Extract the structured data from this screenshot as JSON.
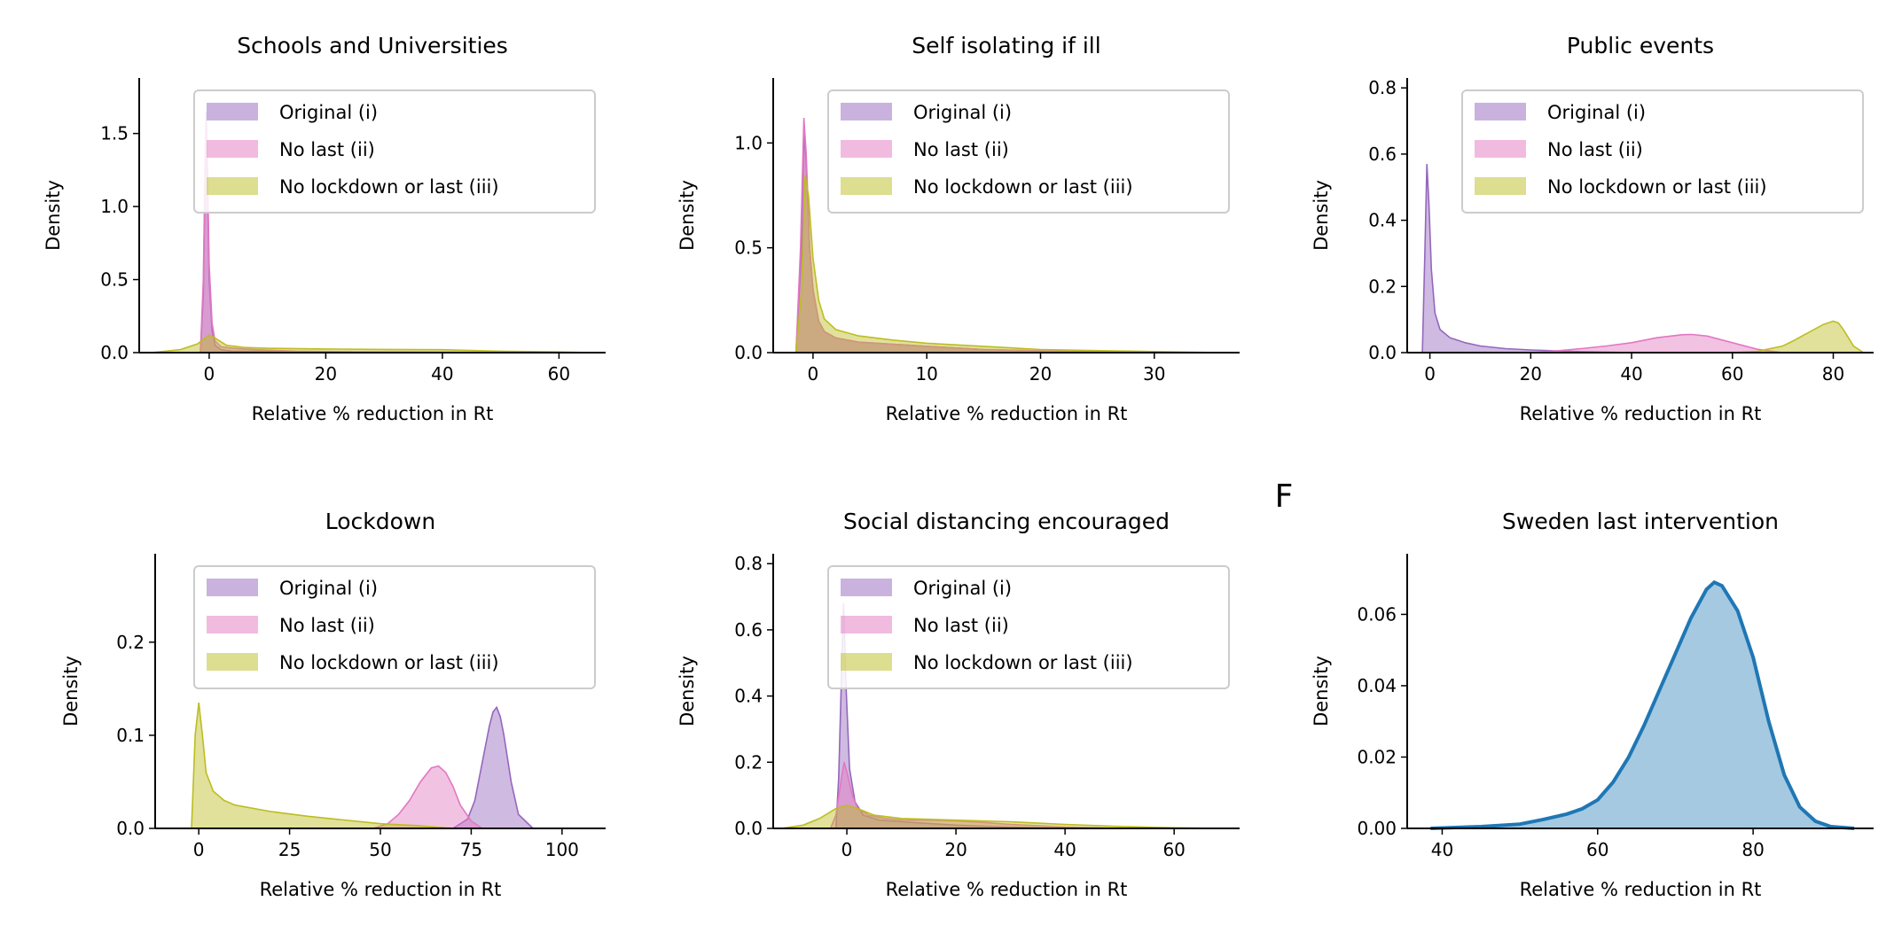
{
  "colors": {
    "original": "#9467bd",
    "no_last": "#e377c2",
    "no_lockdown": "#bcbd22",
    "sweden": "#1f77b4"
  },
  "panel_letter": "F",
  "legend_labels": [
    "Original (i)",
    "No last (ii)",
    "No lockdown or last (iii)"
  ],
  "chart_data": [
    {
      "type": "area",
      "title": "Schools and Universities",
      "xlabel": "Relative % reduction in Rt",
      "ylabel": "Density",
      "xlim": [
        -12,
        68
      ],
      "ylim": [
        0,
        1.88
      ],
      "xticks": [
        0,
        20,
        40,
        60
      ],
      "yticks": [
        0.0,
        0.5,
        1.0,
        1.5
      ],
      "ytick_labels": [
        "0.0",
        "0.5",
        "1.0",
        "1.5"
      ],
      "legend": "upper-right",
      "series": [
        {
          "name": "Original (i)",
          "color": "#9467bd",
          "x": [
            -1.5,
            -1,
            -0.7,
            -0.5,
            -0.3,
            0,
            0.5,
            1,
            2,
            4,
            8,
            15,
            25,
            40,
            60
          ],
          "y": [
            0,
            0.4,
            1.2,
            1.65,
            1.2,
            0.5,
            0.15,
            0.05,
            0.02,
            0.01,
            0.01,
            0.005,
            0.003,
            0.002,
            0
          ]
        },
        {
          "name": "No last (ii)",
          "color": "#e377c2",
          "x": [
            -1.5,
            -1,
            -0.7,
            -0.5,
            -0.3,
            0,
            0.5,
            1,
            2,
            4,
            8,
            15,
            25,
            40,
            60
          ],
          "y": [
            0,
            0.5,
            1.3,
            1.6,
            1.3,
            0.6,
            0.2,
            0.08,
            0.04,
            0.03,
            0.02,
            0.01,
            0.005,
            0.003,
            0
          ]
        },
        {
          "name": "No lockdown or last (iii)",
          "color": "#bcbd22",
          "x": [
            -10,
            -5,
            -2,
            0,
            1,
            3,
            6,
            10,
            20,
            30,
            40,
            50,
            60,
            66
          ],
          "y": [
            0,
            0.02,
            0.06,
            0.12,
            0.1,
            0.05,
            0.035,
            0.03,
            0.025,
            0.022,
            0.02,
            0.01,
            0.005,
            0
          ]
        }
      ]
    },
    {
      "type": "area",
      "title": "Self isolating if ill",
      "xlabel": "Relative % reduction in Rt",
      "ylabel": "Density",
      "xlim": [
        -3.5,
        37.5
      ],
      "ylim": [
        0,
        1.31
      ],
      "xticks": [
        0,
        10,
        20,
        30
      ],
      "yticks": [
        0.0,
        0.5,
        1.0
      ],
      "ytick_labels": [
        "0.0",
        "0.5",
        "1.0"
      ],
      "legend": "upper-right",
      "series": [
        {
          "name": "Original (i)",
          "color": "#9467bd",
          "x": [
            -1.5,
            -1,
            -0.8,
            -0.6,
            -0.3,
            0,
            0.5,
            1,
            2,
            4,
            7,
            10,
            15,
            20,
            30
          ],
          "y": [
            0,
            0.5,
            1.05,
            0.9,
            0.5,
            0.3,
            0.15,
            0.1,
            0.07,
            0.05,
            0.04,
            0.03,
            0.015,
            0.008,
            0
          ]
        },
        {
          "name": "No last (ii)",
          "color": "#e377c2",
          "x": [
            -1.5,
            -1.1,
            -0.8,
            -0.6,
            -0.3,
            0,
            0.5,
            1,
            2,
            4,
            7,
            10,
            15,
            20,
            30
          ],
          "y": [
            0,
            0.5,
            1.12,
            0.95,
            0.5,
            0.3,
            0.15,
            0.1,
            0.07,
            0.05,
            0.04,
            0.03,
            0.015,
            0.008,
            0
          ]
        },
        {
          "name": "No lockdown or last (iii)",
          "color": "#bcbd22",
          "x": [
            -1.5,
            -1,
            -0.7,
            -0.4,
            0,
            0.5,
            1,
            2,
            4,
            7,
            10,
            15,
            20,
            30,
            36
          ],
          "y": [
            0,
            0.3,
            0.85,
            0.75,
            0.45,
            0.25,
            0.16,
            0.11,
            0.08,
            0.06,
            0.045,
            0.03,
            0.015,
            0.005,
            0
          ]
        }
      ]
    },
    {
      "type": "area",
      "title": "Public events",
      "xlabel": "Relative % reduction in Rt",
      "ylabel": "Density",
      "xlim": [
        -4.5,
        88
      ],
      "ylim": [
        0,
        0.83
      ],
      "xticks": [
        0,
        20,
        40,
        60,
        80
      ],
      "yticks": [
        0.0,
        0.2,
        0.4,
        0.6,
        0.8
      ],
      "ytick_labels": [
        "0.0",
        "0.2",
        "0.4",
        "0.6",
        "0.8"
      ],
      "legend": "upper-right",
      "series": [
        {
          "name": "Original (i)",
          "color": "#9467bd",
          "x": [
            -1.5,
            -1,
            -0.6,
            -0.2,
            0.3,
            1,
            2,
            4,
            7,
            10,
            15,
            20,
            30,
            40
          ],
          "y": [
            0,
            0.3,
            0.57,
            0.45,
            0.25,
            0.12,
            0.07,
            0.045,
            0.03,
            0.02,
            0.012,
            0.008,
            0.003,
            0
          ]
        },
        {
          "name": "No last (ii)",
          "color": "#e377c2",
          "x": [
            20,
            25,
            30,
            35,
            40,
            45,
            50,
            52,
            55,
            60,
            65,
            70
          ],
          "y": [
            0,
            0.005,
            0.012,
            0.02,
            0.03,
            0.045,
            0.054,
            0.055,
            0.05,
            0.03,
            0.01,
            0
          ]
        },
        {
          "name": "No lockdown or last (iii)",
          "color": "#bcbd22",
          "x": [
            60,
            65,
            70,
            72,
            75,
            78,
            80,
            81,
            82,
            84,
            86
          ],
          "y": [
            0,
            0.004,
            0.02,
            0.035,
            0.06,
            0.085,
            0.095,
            0.09,
            0.07,
            0.02,
            0
          ]
        }
      ]
    },
    {
      "type": "area",
      "title": "Lockdown",
      "xlabel": "Relative % reduction in Rt",
      "ylabel": "Density",
      "xlim": [
        -12,
        112
      ],
      "ylim": [
        0,
        0.295
      ],
      "xticks": [
        0,
        25,
        50,
        75,
        100
      ],
      "yticks": [
        0.0,
        0.1,
        0.2
      ],
      "ytick_labels": [
        "0.0",
        "0.1",
        "0.2"
      ],
      "legend": "upper-right",
      "series": [
        {
          "name": "Original (i)",
          "color": "#9467bd",
          "x": [
            70,
            74,
            76,
            78,
            80,
            81,
            82,
            83,
            84,
            86,
            88,
            92
          ],
          "y": [
            0,
            0.01,
            0.03,
            0.07,
            0.11,
            0.125,
            0.13,
            0.12,
            0.1,
            0.05,
            0.015,
            0
          ]
        },
        {
          "name": "No last (ii)",
          "color": "#e377c2",
          "x": [
            48,
            52,
            55,
            58,
            61,
            64,
            66,
            68,
            70,
            72,
            75,
            78
          ],
          "y": [
            0,
            0.005,
            0.015,
            0.03,
            0.05,
            0.065,
            0.067,
            0.06,
            0.045,
            0.025,
            0.008,
            0
          ]
        },
        {
          "name": "No lockdown or last (iii)",
          "color": "#bcbd22",
          "x": [
            -2,
            -1,
            0,
            1,
            2,
            4,
            7,
            10,
            20,
            30,
            40,
            50,
            55,
            60,
            65,
            70
          ],
          "y": [
            0,
            0.1,
            0.135,
            0.1,
            0.06,
            0.04,
            0.03,
            0.025,
            0.018,
            0.013,
            0.009,
            0.005,
            0.004,
            0.003,
            0.0015,
            0
          ]
        }
      ]
    },
    {
      "type": "area",
      "title": "Social distancing encouraged",
      "xlabel": "Relative % reduction in Rt",
      "ylabel": "Density",
      "xlim": [
        -13.5,
        72
      ],
      "ylim": [
        0,
        0.83
      ],
      "xticks": [
        0,
        20,
        40,
        60
      ],
      "yticks": [
        0.0,
        0.2,
        0.4,
        0.6,
        0.8
      ],
      "ytick_labels": [
        "0.0",
        "0.2",
        "0.4",
        "0.6",
        "0.8"
      ],
      "legend": "upper-right",
      "series": [
        {
          "name": "Original (i)",
          "color": "#9467bd",
          "x": [
            -2,
            -1.5,
            -1,
            -0.6,
            -0.2,
            0.5,
            1.5,
            3,
            6,
            10,
            15,
            20,
            30,
            40
          ],
          "y": [
            0,
            0.15,
            0.45,
            0.68,
            0.45,
            0.18,
            0.08,
            0.04,
            0.025,
            0.02,
            0.015,
            0.01,
            0.004,
            0
          ]
        },
        {
          "name": "No last (ii)",
          "color": "#e377c2",
          "x": [
            -3,
            -2,
            -1,
            -0.5,
            0,
            1,
            2,
            4,
            7,
            10,
            15,
            20,
            25,
            30,
            40,
            50
          ],
          "y": [
            0,
            0.04,
            0.15,
            0.2,
            0.17,
            0.1,
            0.06,
            0.04,
            0.03,
            0.025,
            0.025,
            0.023,
            0.018,
            0.012,
            0.004,
            0
          ]
        },
        {
          "name": "No lockdown or last (iii)",
          "color": "#bcbd22",
          "x": [
            -12,
            -8,
            -5,
            -2,
            0,
            2,
            5,
            10,
            20,
            30,
            40,
            50,
            60,
            68
          ],
          "y": [
            0,
            0.01,
            0.03,
            0.06,
            0.07,
            0.06,
            0.04,
            0.03,
            0.025,
            0.02,
            0.012,
            0.006,
            0.002,
            0
          ]
        }
      ]
    },
    {
      "type": "area",
      "title": "Sweden last intervention",
      "xlabel": "Relative % reduction in Rt",
      "ylabel": "Density",
      "xlim": [
        35.5,
        95.5
      ],
      "ylim": [
        0,
        0.077
      ],
      "xticks": [
        40,
        60,
        80
      ],
      "yticks": [
        0.0,
        0.02,
        0.04,
        0.06
      ],
      "ytick_labels": [
        "0.00",
        "0.02",
        "0.04",
        "0.06"
      ],
      "legend": "none",
      "series": [
        {
          "name": "",
          "color": "#1f77b4",
          "x": [
            38.5,
            45,
            50,
            53,
            56,
            58,
            60,
            62,
            64,
            66,
            68,
            70,
            72,
            74,
            75,
            76,
            78,
            80,
            82,
            84,
            86,
            88,
            90,
            93
          ],
          "y": [
            0,
            0.0005,
            0.0012,
            0.0025,
            0.004,
            0.0055,
            0.008,
            0.013,
            0.02,
            0.029,
            0.039,
            0.049,
            0.059,
            0.067,
            0.069,
            0.068,
            0.061,
            0.048,
            0.03,
            0.015,
            0.006,
            0.002,
            0.0005,
            0
          ]
        }
      ]
    }
  ]
}
